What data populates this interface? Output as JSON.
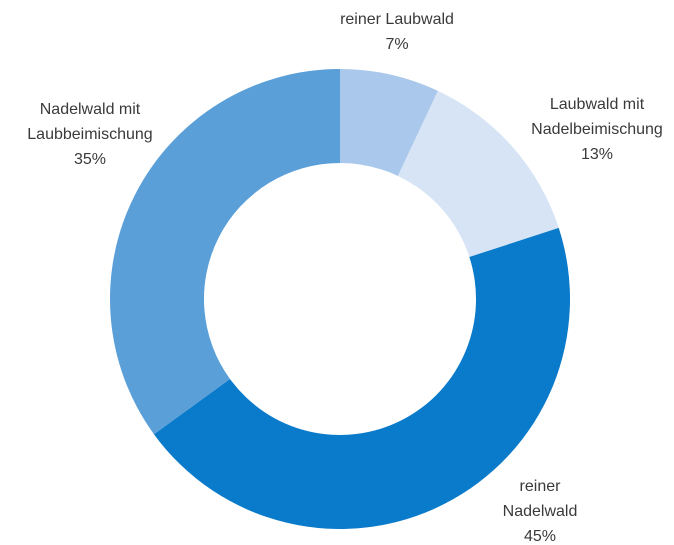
{
  "chart_data": {
    "type": "donut",
    "categories": [
      "reiner Laubwald",
      "Laubwald mit\nNadelbeimischung",
      "reiner\nNadelwald",
      "Nadelwald mit\nLaubbeimischung"
    ],
    "values": [
      7,
      13,
      45,
      35
    ],
    "value_labels": [
      "7%",
      "13%",
      "45%",
      "35%"
    ],
    "colors": [
      "#a9c8ec",
      "#d6e4f5",
      "#0a7acb",
      "#5b9fd8"
    ]
  }
}
